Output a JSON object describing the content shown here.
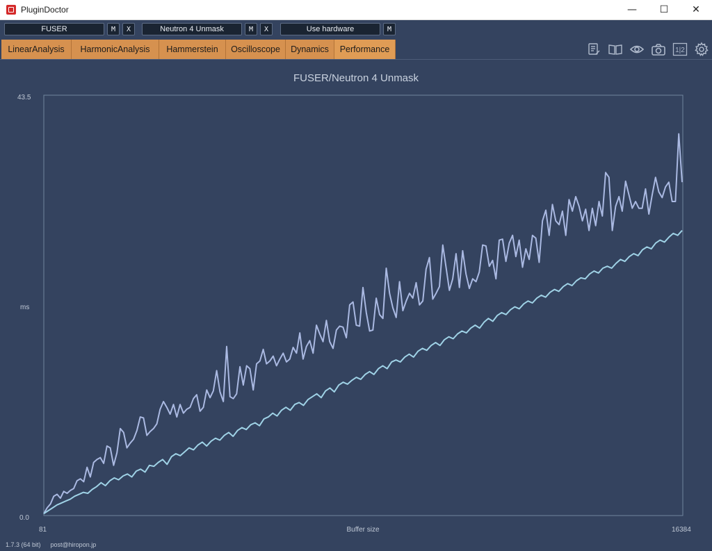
{
  "window": {
    "title": "PluginDoctor",
    "minimize": "—",
    "maximize": "☐",
    "close": "✕"
  },
  "plugins": [
    {
      "name": "FUSER",
      "buttons": [
        "M",
        "X"
      ]
    },
    {
      "name": "Neutron 4 Unmask",
      "buttons": [
        "M",
        "X"
      ]
    },
    {
      "name": "Use hardware",
      "buttons": [
        "M"
      ]
    }
  ],
  "tabs": [
    {
      "label": "LinearAnalysis"
    },
    {
      "label": "HarmonicAnalysis"
    },
    {
      "label": "Hammerstein"
    },
    {
      "label": "Oscilloscope"
    },
    {
      "label": "Dynamics"
    },
    {
      "label": "Performance",
      "active": true
    }
  ],
  "toolbar_icons": [
    "notes-icon",
    "book-icon",
    "eye-icon",
    "camera-icon",
    "split-view-icon",
    "gear-icon"
  ],
  "split_label": "1|2",
  "colors": {
    "background": "#34435f",
    "tab": "#d6914f",
    "series_max": "#aab9e2",
    "series_avg": "#9fd2e6"
  },
  "chart_data": {
    "type": "line",
    "title": "FUSER/Neutron 4 Unmask",
    "xlabel": "Buffer size",
    "ylabel": "ms",
    "xlim": [
      81,
      16384
    ],
    "ylim": [
      0.0,
      43.5
    ],
    "xtick_labels": [
      "81",
      "16384"
    ],
    "ytick_labels": [
      "43.5",
      "0.0"
    ],
    "series": [
      {
        "color": "#aab9e2",
        "y": [
          0.2,
          0.8,
          1.2,
          2.0,
          2.2,
          1.8,
          2.5,
          2.3,
          2.6,
          2.8,
          3.6,
          3.8,
          3.5,
          5.0,
          4.0,
          5.5,
          5.8,
          6.0,
          5.4,
          7.2,
          7.0,
          5.2,
          6.5,
          9.0,
          8.6,
          7.0,
          7.5,
          7.9,
          8.8,
          10.2,
          10.1,
          8.3,
          8.7,
          9.0,
          9.5,
          11.0,
          11.8,
          11.2,
          10.5,
          11.5,
          10.2,
          11.5,
          10.6,
          11.0,
          11.2,
          12.1,
          12.5,
          10.8,
          11.2,
          13.0,
          12.2,
          12.9,
          15.0,
          12.8,
          11.8,
          17.5,
          12.3,
          12.1,
          12.6,
          15.4,
          13.5,
          15.5,
          15.2,
          13.0,
          15.7,
          16.0,
          17.2,
          15.7,
          16.0,
          16.5,
          15.5,
          16.2,
          16.8,
          15.9,
          16.2,
          17.4,
          16.8,
          18.9,
          16.2,
          17.5,
          18.1,
          16.8,
          19.7,
          18.8,
          18.0,
          20.2,
          18.0,
          17.3,
          19.2,
          19.6,
          19.5,
          18.4,
          21.8,
          22.1,
          19.7,
          19.6,
          23.6,
          21.0,
          19.1,
          19.2,
          22.5,
          20.8,
          20.4,
          25.6,
          23.0,
          21.5,
          20.5,
          24.2,
          21.2,
          22.2,
          23.0,
          22.5,
          24.1,
          21.8,
          22.2,
          25.5,
          26.7,
          22.4,
          23.0,
          23.7,
          28.0,
          25.7,
          23.3,
          24.5,
          27.1,
          23.6,
          27.4,
          25.0,
          23.5,
          24.5,
          24.2,
          25.2,
          28.0,
          27.9,
          25.8,
          26.4,
          24.5,
          28.5,
          28.6,
          26.3,
          28.2,
          29.0,
          26.8,
          28.5,
          25.7,
          27.6,
          26.5,
          29.0,
          28.7,
          26.2,
          30.5,
          31.6,
          29.0,
          32.2,
          30.5,
          30.1,
          31.5,
          29.0,
          32.7,
          31.5,
          33.0,
          32.0,
          30.5,
          31.7,
          29.5,
          31.8,
          30.0,
          32.5,
          31.0,
          35.5,
          35.0,
          29.5,
          32.0,
          33.0,
          31.5,
          34.6,
          33.2,
          31.8,
          32.5,
          31.8,
          31.8,
          33.8,
          31.2,
          33.2,
          35.0,
          33.5,
          32.9,
          34.0,
          34.5,
          32.5,
          32.5,
          39.5,
          34.5
        ]
      },
      {
        "color": "#9fd2e6",
        "y": [
          0.2,
          0.5,
          0.8,
          1.1,
          1.3,
          1.5,
          1.7,
          2.0,
          2.2,
          2.4,
          2.3,
          2.7,
          3.0,
          3.4,
          3.1,
          3.6,
          3.9,
          3.7,
          4.1,
          4.3,
          4.0,
          4.6,
          4.8,
          4.5,
          5.2,
          5.1,
          5.5,
          5.8,
          5.3,
          6.1,
          6.4,
          6.2,
          6.6,
          7.0,
          6.8,
          7.3,
          7.6,
          7.2,
          7.7,
          8.0,
          7.8,
          8.3,
          8.6,
          8.2,
          8.8,
          9.1,
          8.9,
          9.4,
          9.6,
          9.3,
          10.0,
          10.2,
          10.6,
          10.3,
          10.9,
          11.2,
          10.9,
          11.5,
          11.7,
          11.4,
          12.0,
          12.3,
          12.6,
          12.2,
          12.9,
          13.2,
          12.8,
          13.5,
          13.8,
          13.6,
          14.0,
          14.3,
          14.1,
          14.6,
          14.9,
          14.6,
          15.2,
          15.5,
          15.2,
          15.9,
          16.1,
          15.9,
          16.4,
          16.7,
          16.4,
          17.0,
          17.3,
          17.1,
          17.6,
          17.9,
          17.6,
          18.2,
          18.5,
          18.3,
          18.8,
          19.1,
          18.9,
          19.4,
          19.7,
          19.4,
          20.0,
          20.4,
          20.1,
          20.7,
          21.0,
          20.8,
          21.3,
          21.6,
          21.4,
          21.9,
          22.2,
          22.0,
          22.5,
          22.8,
          22.6,
          23.1,
          23.4,
          23.2,
          23.7,
          24.0,
          23.8,
          24.3,
          24.6,
          24.5,
          25.0,
          25.3,
          25.1,
          25.6,
          25.8,
          25.6,
          26.1,
          26.5,
          26.3,
          26.8,
          27.1,
          26.9,
          27.5,
          27.8,
          27.6,
          28.2,
          28.5,
          28.3,
          28.8,
          29.2,
          29.0,
          29.5
        ]
      }
    ]
  },
  "footer": {
    "version": "1.7.3 (64 bit)",
    "email": "post@hiropon.jp"
  }
}
